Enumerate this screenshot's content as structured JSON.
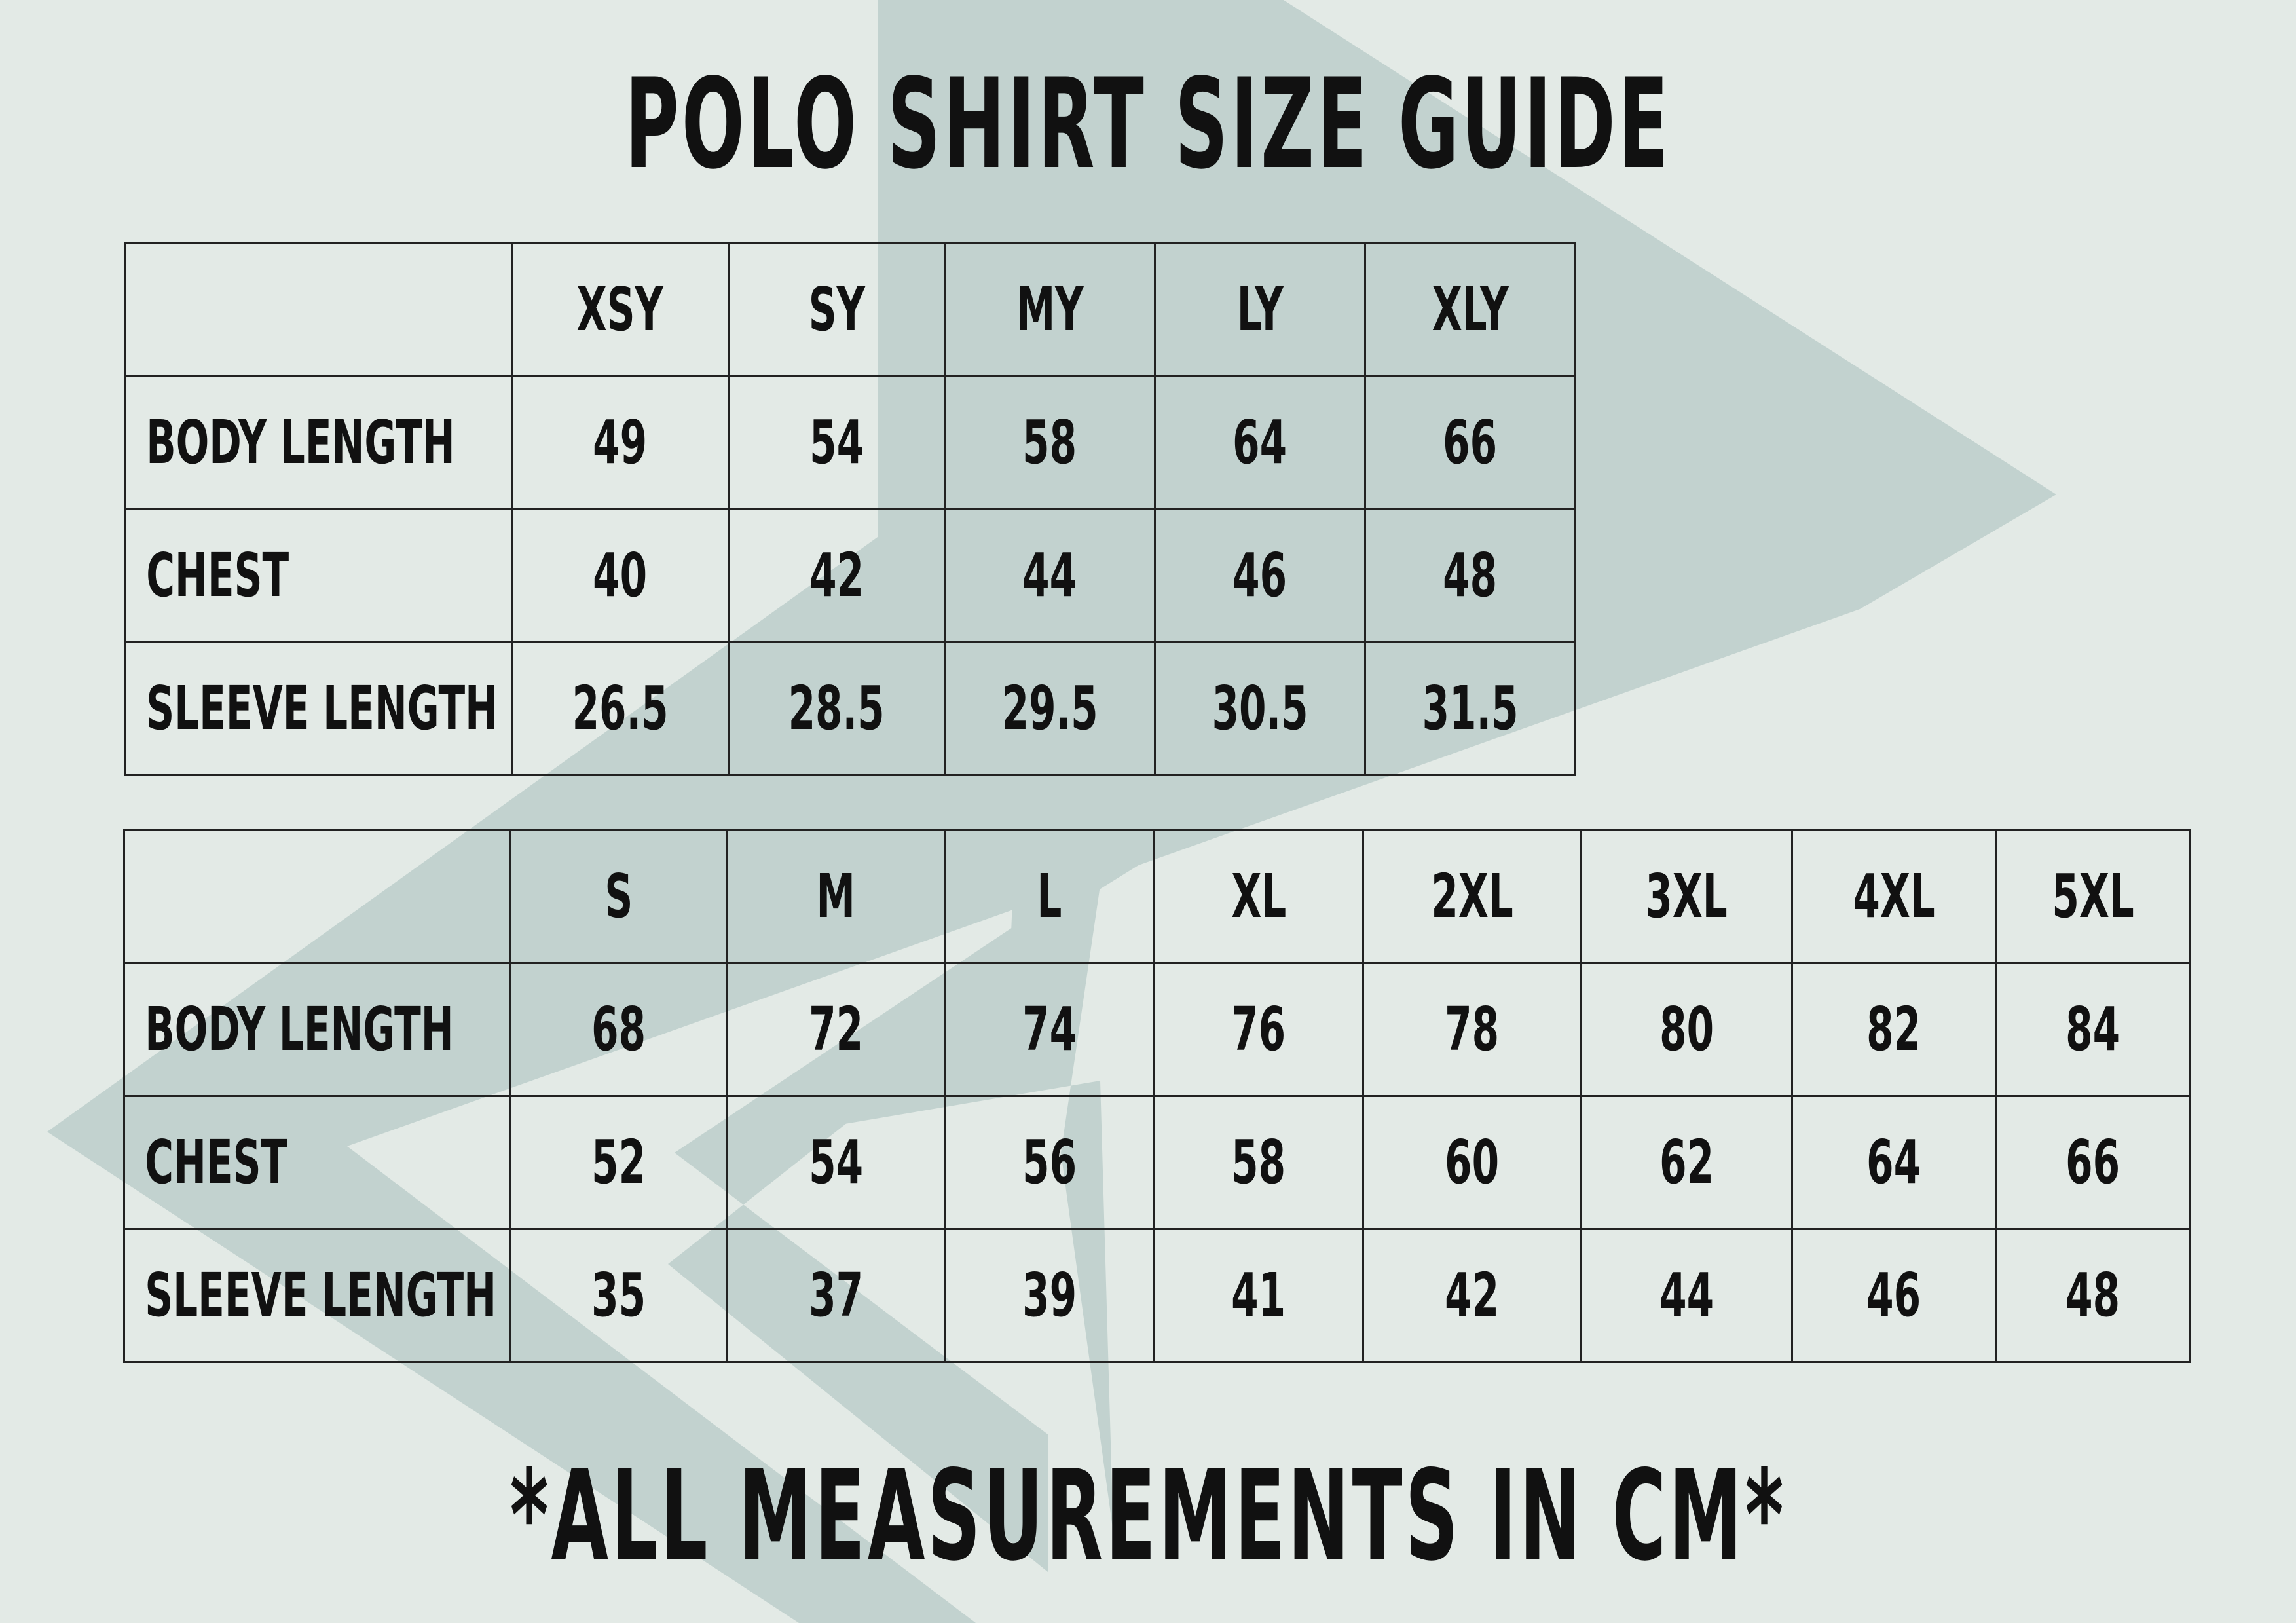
{
  "title": "POLO SHIRT SIZE GUIDE",
  "footer": "*ALL MEASUREMENTS IN CM*",
  "colors": {
    "background": "#e3eae6",
    "watermark": "#c2d2cf",
    "text": "#111111",
    "grid": "#222222"
  },
  "youth_table": {
    "sizes": [
      "XSY",
      "SY",
      "MY",
      "LY",
      "XLY"
    ],
    "rows": [
      {
        "label": "BODY LENGTH",
        "values": [
          "49",
          "54",
          "58",
          "64",
          "66"
        ]
      },
      {
        "label": "CHEST",
        "values": [
          "40",
          "42",
          "44",
          "46",
          "48"
        ]
      },
      {
        "label": "SLEEVE LENGTH",
        "values": [
          "26.5",
          "28.5",
          "29.5",
          "30.5",
          "31.5"
        ]
      }
    ]
  },
  "adult_table": {
    "sizes": [
      "S",
      "M",
      "L",
      "XL",
      "2XL",
      "3XL",
      "4XL",
      "5XL"
    ],
    "rows": [
      {
        "label": "BODY LENGTH",
        "values": [
          "68",
          "72",
          "74",
          "76",
          "78",
          "80",
          "82",
          "84"
        ]
      },
      {
        "label": "CHEST",
        "values": [
          "52",
          "54",
          "56",
          "58",
          "60",
          "62",
          "64",
          "66"
        ]
      },
      {
        "label": "SLEEVE LENGTH",
        "values": [
          "35",
          "37",
          "39",
          "41",
          "42",
          "44",
          "46",
          "48"
        ]
      }
    ]
  }
}
